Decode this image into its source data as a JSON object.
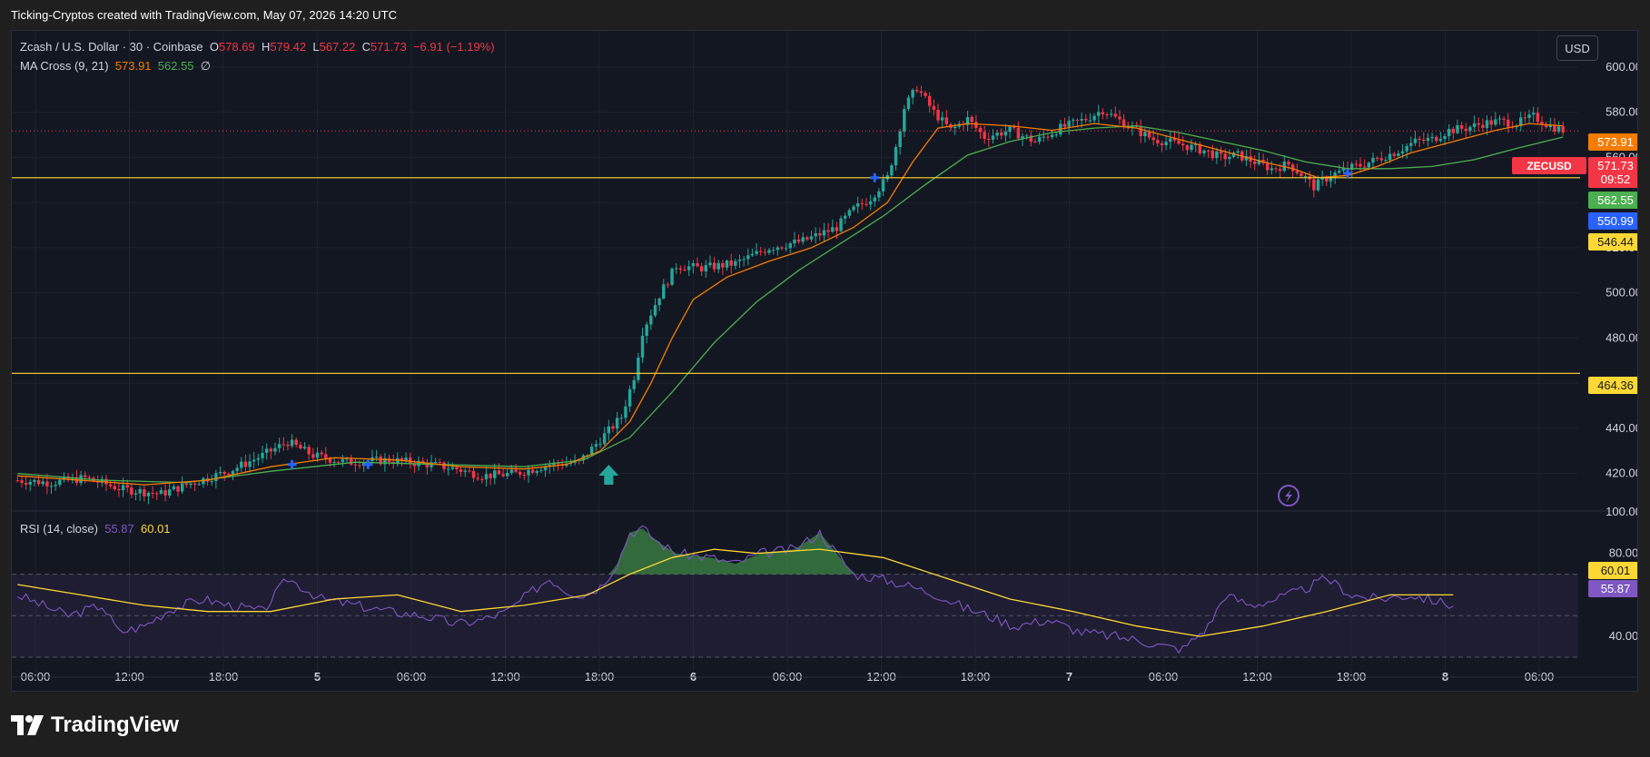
{
  "caption": "Ticking-Cryptos created with TradingView.com, May 07, 2026 14:20 UTC",
  "legend": {
    "title": "Zcash / U.S. Dollar · 30 · Coinbase",
    "o_label": "O",
    "o": "578.69",
    "h_label": "H",
    "h": "579.42",
    "l_label": "L",
    "l": "567.22",
    "c_label": "C",
    "c": "571.73",
    "change": "−6.91 (−1.19%)",
    "ma_title": "MA Cross (9, 21)",
    "ma_fast": "573.91",
    "ma_slow": "562.55",
    "ma_extra": "∅",
    "rsi_title": "RSI (14, close)",
    "rsi_value": "55.87",
    "rsi_ma": "60.01"
  },
  "currency": "USD",
  "logo_text": "TradingView",
  "colors": {
    "up": "#26a69a",
    "down": "#f23645",
    "ma_fast": "#f57c00",
    "ma_slow": "#4caf50",
    "level": "#fdd835",
    "rsi": "#7e57c2",
    "rsi_ma": "#fdd835",
    "cross": "#2962ff"
  },
  "chart_data": [
    {
      "type": "candlestick",
      "symbol": "ZECUSD",
      "ylim": [
        405,
        608
      ],
      "y_ticks": [
        420,
        440,
        460,
        480,
        500,
        520,
        540,
        560,
        580,
        600
      ],
      "y_tick_labels": [
        "420.00",
        "440.00",
        "460.00",
        "480.00",
        "500.00",
        "520.00",
        "540.00",
        "560.00",
        "580.00",
        "600.00"
      ],
      "x_ticks": [
        "06:00",
        "12:00",
        "18:00",
        "5",
        "06:00",
        "12:00",
        "18:00",
        "6",
        "06:00",
        "12:00",
        "18:00",
        "7",
        "06:00",
        "12:00",
        "18:00",
        "8",
        "06:00"
      ],
      "horizontal_levels": [
        550.99,
        464.36
      ],
      "price_tags": [
        {
          "label": "",
          "value": "573.91",
          "color": "#f57c00"
        },
        {
          "label": "ZECUSD",
          "value": "571.73",
          "sub": "09:52",
          "color": "#f23645"
        },
        {
          "label": "",
          "value": "562.55",
          "color": "#4caf50"
        },
        {
          "label": "",
          "value": "550.99",
          "color": "#2962ff"
        },
        {
          "label": "",
          "value": "546.44",
          "color": "#fdd835"
        },
        {
          "label": "",
          "value": "464.36",
          "color": "#fdd835"
        }
      ],
      "close_path": [
        [
          0,
          417
        ],
        [
          8,
          416
        ],
        [
          16,
          418
        ],
        [
          25,
          413
        ],
        [
          34,
          411
        ],
        [
          40,
          415
        ],
        [
          50,
          421
        ],
        [
          58,
          428
        ],
        [
          64,
          434
        ],
        [
          70,
          428
        ],
        [
          78,
          425
        ],
        [
          88,
          426
        ],
        [
          98,
          424
        ],
        [
          104,
          422
        ],
        [
          110,
          419
        ],
        [
          118,
          420
        ],
        [
          126,
          424
        ],
        [
          133,
          425
        ],
        [
          137,
          433
        ],
        [
          143,
          445
        ],
        [
          146,
          463
        ],
        [
          148,
          483
        ],
        [
          152,
          499
        ],
        [
          156,
          512
        ],
        [
          162,
          511
        ],
        [
          170,
          513
        ],
        [
          178,
          520
        ],
        [
          186,
          523
        ],
        [
          194,
          529
        ],
        [
          198,
          537
        ],
        [
          202,
          542
        ],
        [
          206,
          551
        ],
        [
          208,
          565
        ],
        [
          210,
          582
        ],
        [
          213,
          591
        ],
        [
          217,
          580
        ],
        [
          221,
          572
        ],
        [
          225,
          577
        ],
        [
          229,
          569
        ],
        [
          235,
          572
        ],
        [
          241,
          567
        ],
        [
          247,
          573
        ],
        [
          253,
          577
        ],
        [
          257,
          581
        ],
        [
          263,
          574
        ],
        [
          269,
          568
        ],
        [
          275,
          566
        ],
        [
          281,
          563
        ],
        [
          285,
          560
        ],
        [
          289,
          561
        ],
        [
          293,
          558
        ],
        [
          297,
          555
        ],
        [
          301,
          557
        ],
        [
          305,
          551
        ],
        [
          307,
          547
        ],
        [
          311,
          552
        ],
        [
          315,
          555
        ],
        [
          319,
          557
        ],
        [
          323,
          560
        ],
        [
          327,
          563
        ],
        [
          331,
          567
        ],
        [
          335,
          568
        ],
        [
          339,
          572
        ],
        [
          343,
          573
        ],
        [
          347,
          575
        ],
        [
          351,
          576
        ],
        [
          355,
          575
        ],
        [
          359,
          578
        ],
        [
          363,
          574
        ],
        [
          366,
          572
        ]
      ],
      "ma_fast": [
        [
          0,
          419
        ],
        [
          15,
          417
        ],
        [
          30,
          415
        ],
        [
          45,
          417
        ],
        [
          60,
          423
        ],
        [
          75,
          427
        ],
        [
          90,
          426
        ],
        [
          105,
          423
        ],
        [
          120,
          422
        ],
        [
          130,
          424
        ],
        [
          138,
          430
        ],
        [
          145,
          443
        ],
        [
          150,
          460
        ],
        [
          155,
          480
        ],
        [
          160,
          497
        ],
        [
          168,
          507
        ],
        [
          178,
          514
        ],
        [
          188,
          520
        ],
        [
          198,
          529
        ],
        [
          206,
          540
        ],
        [
          212,
          558
        ],
        [
          218,
          573
        ],
        [
          225,
          575
        ],
        [
          235,
          574
        ],
        [
          245,
          572
        ],
        [
          255,
          575
        ],
        [
          265,
          573
        ],
        [
          275,
          568
        ],
        [
          285,
          563
        ],
        [
          295,
          558
        ],
        [
          302,
          555
        ],
        [
          308,
          551
        ],
        [
          315,
          552
        ],
        [
          322,
          556
        ],
        [
          330,
          562
        ],
        [
          340,
          567
        ],
        [
          350,
          572
        ],
        [
          358,
          575
        ],
        [
          366,
          574
        ]
      ],
      "ma_slow": [
        [
          0,
          420
        ],
        [
          20,
          417
        ],
        [
          40,
          416
        ],
        [
          60,
          421
        ],
        [
          80,
          425
        ],
        [
          100,
          424
        ],
        [
          120,
          423
        ],
        [
          134,
          426
        ],
        [
          145,
          436
        ],
        [
          155,
          456
        ],
        [
          165,
          478
        ],
        [
          175,
          496
        ],
        [
          185,
          510
        ],
        [
          195,
          522
        ],
        [
          205,
          534
        ],
        [
          215,
          548
        ],
        [
          225,
          561
        ],
        [
          235,
          567
        ],
        [
          245,
          571
        ],
        [
          255,
          573
        ],
        [
          265,
          574
        ],
        [
          275,
          571
        ],
        [
          285,
          567
        ],
        [
          295,
          563
        ],
        [
          305,
          558
        ],
        [
          315,
          555
        ],
        [
          325,
          555
        ],
        [
          335,
          556
        ],
        [
          345,
          559
        ],
        [
          355,
          564
        ],
        [
          366,
          569
        ]
      ],
      "cross_markers": [
        [
          65,
          424
        ],
        [
          83,
          424
        ],
        [
          203,
          551
        ],
        [
          315,
          553
        ]
      ],
      "buy_arrow_x": 140
    },
    {
      "type": "line",
      "name": "RSI",
      "ylim": [
        30,
        100
      ],
      "y_ticks": [
        40,
        80,
        100
      ],
      "y_tick_labels": [
        "40.00",
        "80.00",
        "100.00"
      ],
      "bands": [
        70,
        50,
        30
      ],
      "rsi": [
        [
          0,
          60
        ],
        [
          6,
          55
        ],
        [
          12,
          50
        ],
        [
          20,
          55
        ],
        [
          24,
          42
        ],
        [
          30,
          45
        ],
        [
          36,
          53
        ],
        [
          44,
          58
        ],
        [
          50,
          55
        ],
        [
          58,
          52
        ],
        [
          64,
          68
        ],
        [
          72,
          58
        ],
        [
          80,
          55
        ],
        [
          88,
          52
        ],
        [
          96,
          50
        ],
        [
          104,
          46
        ],
        [
          110,
          48
        ],
        [
          116,
          52
        ],
        [
          122,
          62
        ],
        [
          126,
          68
        ],
        [
          130,
          62
        ],
        [
          134,
          60
        ],
        [
          138,
          64
        ],
        [
          142,
          75
        ],
        [
          145,
          90
        ],
        [
          148,
          92
        ],
        [
          152,
          85
        ],
        [
          156,
          80
        ],
        [
          164,
          78
        ],
        [
          170,
          75
        ],
        [
          176,
          80
        ],
        [
          184,
          82
        ],
        [
          190,
          90
        ],
        [
          194,
          80
        ],
        [
          198,
          70
        ],
        [
          204,
          68
        ],
        [
          210,
          65
        ],
        [
          218,
          60
        ],
        [
          224,
          54
        ],
        [
          230,
          50
        ],
        [
          236,
          45
        ],
        [
          244,
          48
        ],
        [
          252,
          42
        ],
        [
          260,
          40
        ],
        [
          266,
          38
        ],
        [
          272,
          35
        ],
        [
          276,
          34
        ],
        [
          282,
          45
        ],
        [
          286,
          60
        ],
        [
          292,
          55
        ],
        [
          298,
          58
        ],
        [
          304,
          62
        ],
        [
          310,
          68
        ],
        [
          316,
          60
        ],
        [
          322,
          58
        ],
        [
          330,
          60
        ],
        [
          336,
          57
        ],
        [
          340,
          55
        ]
      ],
      "rsi_ma": [
        [
          0,
          65
        ],
        [
          15,
          60
        ],
        [
          30,
          55
        ],
        [
          45,
          52
        ],
        [
          60,
          52
        ],
        [
          75,
          58
        ],
        [
          90,
          60
        ],
        [
          105,
          52
        ],
        [
          120,
          55
        ],
        [
          135,
          60
        ],
        [
          145,
          70
        ],
        [
          155,
          78
        ],
        [
          165,
          82
        ],
        [
          175,
          80
        ],
        [
          190,
          82
        ],
        [
          205,
          78
        ],
        [
          220,
          68
        ],
        [
          235,
          58
        ],
        [
          250,
          52
        ],
        [
          265,
          45
        ],
        [
          280,
          40
        ],
        [
          295,
          45
        ],
        [
          310,
          52
        ],
        [
          325,
          60
        ],
        [
          340,
          60
        ]
      ]
    }
  ]
}
